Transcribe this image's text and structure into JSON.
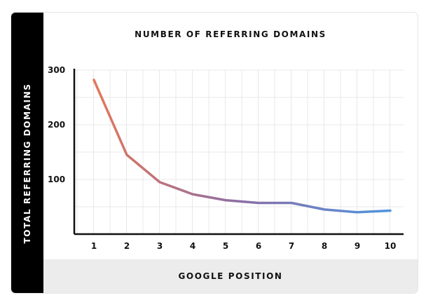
{
  "chart_data": {
    "type": "line",
    "title": "NUMBER OF REFERRING DOMAINS",
    "xlabel": "GOOGLE POSITION",
    "ylabel": "TOTAL REFERRING DOMAINS",
    "x": [
      1,
      2,
      3,
      4,
      5,
      6,
      7,
      8,
      9,
      10
    ],
    "series": [
      {
        "values": [
          282,
          145,
          95,
          73,
          62,
          57,
          57,
          45,
          40,
          43
        ]
      }
    ],
    "yticks": [
      100,
      200,
      300
    ],
    "xticks": [
      "1",
      "2",
      "3",
      "4",
      "5",
      "6",
      "7",
      "8",
      "9",
      "10"
    ],
    "ylim": [
      0,
      300
    ],
    "grid": true,
    "colors": {
      "start": "#e4775a",
      "mid": "#8b6fa6",
      "end": "#4f95de",
      "axis": "#111111",
      "grid": "#e8e8e8"
    }
  }
}
